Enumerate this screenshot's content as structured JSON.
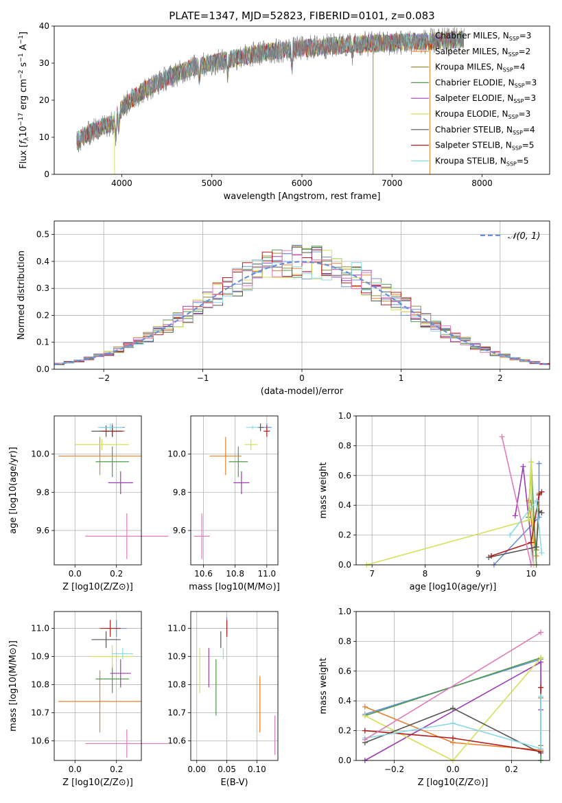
{
  "figure": {
    "title": "PLATE=1347, MJD=52823, FIBERID=0101, z=0.083"
  },
  "model_colors": {
    "Chabrier MILES": "#6a8fd8",
    "Salpeter MILES": "#e6802e",
    "Kroupa MILES": "#9c8a3a",
    "Chabrier ELODIE": "#4e9a4e",
    "Salpeter ELODIE": "#9c3cb4",
    "Kroupa ELODIE": "#d4e05a",
    "Chabrier STELIB": "#555555",
    "Salpeter STELIB": "#b01c1c",
    "Kroupa STELIB": "#8ad9e6"
  },
  "chart_data": [
    {
      "id": "spectrum",
      "type": "line",
      "title": "PLATE=1347, MJD=52823, FIBERID=0101, z=0.083",
      "xlabel": "wavelength [Angstrom, rest frame]",
      "ylabel": "Flux [f_λ 10^-17 erg cm^-2 s^-1 A^-1]",
      "xlim": [
        3250,
        8750
      ],
      "ylim": [
        0,
        40
      ],
      "xticks": [
        4000,
        5000,
        6000,
        7000,
        8000
      ],
      "yticks": [
        0,
        10,
        20,
        30,
        40
      ],
      "grid": false,
      "legend_position": "right",
      "series": [
        {
          "name": "Chabrier MILES, N_SSP=3"
        },
        {
          "name": "Salpeter MILES, N_SSP=2"
        },
        {
          "name": "Kroupa MILES, N_SSP=4"
        },
        {
          "name": "Chabrier ELODIE, N_SSP=3"
        },
        {
          "name": "Salpeter ELODIE, N_SSP=3"
        },
        {
          "name": "Kroupa ELODIE, N_SSP=3"
        },
        {
          "name": "Chabrier STELIB, N_SSP=4"
        },
        {
          "name": "Salpeter STELIB, N_SSP=5"
        },
        {
          "name": "Kroupa STELIB, N_SSP=5"
        }
      ],
      "continuum": [
        [
          3500,
          9
        ],
        [
          3700,
          12
        ],
        [
          3900,
          14
        ],
        [
          4000,
          18
        ],
        [
          4200,
          22
        ],
        [
          4500,
          26
        ],
        [
          4800,
          29
        ],
        [
          5200,
          31
        ],
        [
          5600,
          33
        ],
        [
          6000,
          34
        ],
        [
          6500,
          35
        ],
        [
          7000,
          35.5
        ],
        [
          7500,
          36
        ],
        [
          7800,
          36.5
        ]
      ]
    },
    {
      "id": "residuals",
      "type": "histogram",
      "xlabel": "(data-model)/error",
      "ylabel": "Normed distribution",
      "xlim": [
        -2.5,
        2.5
      ],
      "ylim": [
        0,
        0.55
      ],
      "xticks": [
        -2,
        -1,
        0,
        1,
        2
      ],
      "yticks": [
        0.0,
        0.1,
        0.2,
        0.3,
        0.4,
        0.5
      ],
      "grid": true,
      "legend": "N(0,1)",
      "legend_position": "top-right",
      "bin_width": 0.1,
      "reference_curve": "normal(0,1)"
    },
    {
      "id": "age_vs_Z",
      "type": "scatter",
      "xlabel": "Z [log10(Z/Z⊙)]",
      "ylabel": "age  [log10(age/yr)]",
      "xlim": [
        -0.1,
        0.32
      ],
      "ylim": [
        9.42,
        10.2
      ],
      "xticks": [
        0.0,
        0.2
      ],
      "yticks": [
        9.6,
        9.8,
        10.0
      ],
      "grid": true,
      "points": [
        {
          "model": "Chabrier MILES",
          "x": 0.18,
          "xerr": 0.06,
          "y": 10.14,
          "yerr": 0.02
        },
        {
          "model": "Salpeter MILES",
          "x": 0.12,
          "xerr": 0.2,
          "y": 9.99,
          "yerr": 0.1
        },
        {
          "model": "Kroupa MILES",
          "x": 0.18,
          "xerr": 0.06,
          "y": 10.12,
          "yerr": 0.03
        },
        {
          "model": "Chabrier ELODIE",
          "x": 0.18,
          "xerr": 0.08,
          "y": 9.96,
          "yerr": 0.08
        },
        {
          "model": "Salpeter ELODIE",
          "x": 0.22,
          "xerr": 0.06,
          "y": 9.85,
          "yerr": 0.06
        },
        {
          "model": "Kroupa ELODIE",
          "x": 0.13,
          "xerr": 0.13,
          "y": 10.05,
          "yerr": 0.03
        },
        {
          "model": "Chabrier STELIB",
          "x": 0.15,
          "xerr": 0.07,
          "y": 10.12,
          "yerr": 0.03
        },
        {
          "model": "Salpeter STELIB",
          "x": 0.18,
          "xerr": 0.05,
          "y": 10.12,
          "yerr": 0.03
        },
        {
          "model": "Kroupa STELIB",
          "x": 0.17,
          "xerr": 0.06,
          "y": 10.14,
          "yerr": 0.02
        },
        {
          "model": "Kroupa pink",
          "x": 0.25,
          "xerr": 0.2,
          "y": 9.57,
          "yerr": 0.12
        }
      ]
    },
    {
      "id": "age_vs_mass",
      "type": "scatter",
      "xlabel": "mass [log10(M/M⊙)]",
      "ylabel": "",
      "xlim": [
        10.52,
        11.07
      ],
      "ylim": [
        9.42,
        10.2
      ],
      "xticks": [
        10.6,
        10.8,
        11.0
      ],
      "yticks": [
        9.6,
        9.8,
        10.0
      ],
      "grid": true,
      "points": [
        {
          "model": "Chabrier MILES",
          "x": 11.0,
          "xerr": 0.03,
          "y": 10.14,
          "yerr": 0.02
        },
        {
          "model": "Salpeter MILES",
          "x": 10.74,
          "xerr": 0.1,
          "y": 9.99,
          "yerr": 0.1
        },
        {
          "model": "Chabrier ELODIE",
          "x": 10.82,
          "xerr": 0.06,
          "y": 9.96,
          "yerr": 0.08
        },
        {
          "model": "Salpeter ELODIE",
          "x": 10.84,
          "xerr": 0.05,
          "y": 9.85,
          "yerr": 0.06
        },
        {
          "model": "Kroupa ELODIE",
          "x": 10.9,
          "xerr": 0.04,
          "y": 10.05,
          "yerr": 0.03
        },
        {
          "model": "Chabrier STELIB",
          "x": 10.96,
          "xerr": 0.02,
          "y": 10.14,
          "yerr": 0.02
        },
        {
          "model": "Salpeter STELIB",
          "x": 11.0,
          "xerr": 0.02,
          "y": 10.12,
          "yerr": 0.03
        },
        {
          "model": "Kroupa STELIB",
          "x": 10.91,
          "xerr": 0.04,
          "y": 10.14,
          "yerr": 0.01
        },
        {
          "model": "Kroupa pink",
          "x": 10.59,
          "xerr": 0.05,
          "y": 9.57,
          "yerr": 0.12
        }
      ]
    },
    {
      "id": "weight_vs_age",
      "type": "line",
      "xlabel": "age  [log10(age/yr)]",
      "ylabel": "mass weight",
      "xlim": [
        6.7,
        10.35
      ],
      "ylim": [
        0,
        1
      ],
      "xticks": [
        7,
        8,
        9,
        10
      ],
      "yticks": [
        0.0,
        0.2,
        0.4,
        0.6,
        0.8,
        1.0
      ],
      "grid": true,
      "series": [
        {
          "model": "Chabrier MILES",
          "x": [
            9.3,
            10.15,
            10.15
          ],
          "y": [
            0.0,
            0.32,
            0.68
          ]
        },
        {
          "model": "Salpeter MILES",
          "x": [
            9.95,
            10.1
          ],
          "y": [
            0.43,
            0.06
          ]
        },
        {
          "model": "Kroupa MILES",
          "x": [
            10.0,
            10.1,
            10.15
          ],
          "y": [
            0.42,
            0.1,
            0.48
          ]
        },
        {
          "model": "Chabrier ELODIE",
          "x": [
            9.95,
            10.0,
            10.1
          ],
          "y": [
            0.32,
            0.69,
            0.0
          ]
        },
        {
          "model": "Salpeter ELODIE",
          "x": [
            9.7,
            9.85,
            10.05
          ],
          "y": [
            0.33,
            0.66,
            0.0
          ]
        },
        {
          "model": "Kroupa ELODIE",
          "x": [
            6.9,
            9.95,
            10.0,
            10.05
          ],
          "y": [
            0.0,
            0.3,
            0.69,
            0.0
          ]
        },
        {
          "model": "Chabrier STELIB",
          "x": [
            9.2,
            10.1,
            10.15,
            10.2
          ],
          "y": [
            0.05,
            0.12,
            0.36,
            0.35
          ]
        },
        {
          "model": "Salpeter STELIB",
          "x": [
            9.25,
            10.0,
            10.15,
            10.2
          ],
          "y": [
            0.06,
            0.15,
            0.47,
            0.49
          ]
        },
        {
          "model": "Kroupa STELIB",
          "x": [
            9.6,
            10.1,
            10.2
          ],
          "y": [
            0.2,
            0.43,
            0.08
          ]
        },
        {
          "model": "Kroupa pink",
          "x": [
            9.45,
            10.0
          ],
          "y": [
            0.86,
            0.0
          ]
        }
      ]
    },
    {
      "id": "mass_vs_Z",
      "type": "scatter",
      "xlabel": "Z [log10(Z/Z⊙)]",
      "ylabel": "mass [log10(M/M⊙)]",
      "xlim": [
        -0.1,
        0.32
      ],
      "ylim": [
        10.53,
        11.06
      ],
      "xticks": [
        0.0,
        0.2
      ],
      "yticks": [
        10.6,
        10.7,
        10.8,
        10.9,
        11.0
      ],
      "grid": true,
      "points": [
        {
          "model": "Chabrier MILES",
          "x": 0.2,
          "xerr": 0.05,
          "y": 11.0,
          "yerr": 0.03
        },
        {
          "model": "Salpeter MILES",
          "x": 0.12,
          "xerr": 0.2,
          "y": 10.74,
          "yerr": 0.11
        },
        {
          "model": "Chabrier ELODIE",
          "x": 0.18,
          "xerr": 0.08,
          "y": 10.82,
          "yerr": 0.05
        },
        {
          "model": "Salpeter ELODIE",
          "x": 0.22,
          "xerr": 0.05,
          "y": 10.84,
          "yerr": 0.05
        },
        {
          "model": "Kroupa ELODIE",
          "x": 0.18,
          "xerr": 0.1,
          "y": 10.9,
          "yerr": 0.04
        },
        {
          "model": "Chabrier STELIB",
          "x": 0.15,
          "xerr": 0.07,
          "y": 10.96,
          "yerr": 0.03
        },
        {
          "model": "Salpeter STELIB",
          "x": 0.17,
          "xerr": 0.05,
          "y": 11.0,
          "yerr": 0.03
        },
        {
          "model": "Kroupa STELIB",
          "x": 0.23,
          "xerr": 0.05,
          "y": 10.91,
          "yerr": 0.02
        },
        {
          "model": "Kroupa pink",
          "x": 0.25,
          "xerr": 0.2,
          "y": 10.59,
          "yerr": 0.05
        }
      ]
    },
    {
      "id": "mass_vs_EBV",
      "type": "scatter",
      "xlabel": "E(B-V)",
      "ylabel": "",
      "xlim": [
        -0.01,
        0.135
      ],
      "ylim": [
        10.53,
        11.06
      ],
      "xticks": [
        0.0,
        0.05,
        0.1
      ],
      "yticks": [
        10.6,
        10.7,
        10.8,
        10.9,
        11.0
      ],
      "grid": true,
      "points": [
        {
          "model": "Chabrier MILES",
          "x": 0.05,
          "xerr": 0,
          "y": 11.01,
          "yerr": 0.03
        },
        {
          "model": "Salpeter MILES",
          "x": 0.105,
          "xerr": 0,
          "y": 10.73,
          "yerr": 0.1
        },
        {
          "model": "Chabrier ELODIE",
          "x": 0.032,
          "xerr": 0,
          "y": 10.79,
          "yerr": 0.1
        },
        {
          "model": "Salpeter ELODIE",
          "x": 0.02,
          "xerr": 0,
          "y": 10.86,
          "yerr": 0.07
        },
        {
          "model": "Kroupa ELODIE",
          "x": 0.005,
          "xerr": 0,
          "y": 10.85,
          "yerr": 0.08
        },
        {
          "model": "Chabrier STELIB",
          "x": 0.04,
          "xerr": 0,
          "y": 10.96,
          "yerr": 0.03
        },
        {
          "model": "Salpeter STELIB",
          "x": 0.05,
          "xerr": 0,
          "y": 11.0,
          "yerr": 0.03
        },
        {
          "model": "Kroupa STELIB",
          "x": 0.044,
          "xerr": 0,
          "y": 10.91,
          "yerr": 0.02
        },
        {
          "model": "Kroupa pink",
          "x": 0.13,
          "xerr": 0,
          "y": 10.62,
          "yerr": 0.07
        }
      ]
    },
    {
      "id": "weight_vs_Z",
      "type": "line",
      "xlabel": "Z [log10(Z/Z⊙)]",
      "ylabel": "mass weight",
      "xlim": [
        -0.33,
        0.33
      ],
      "ylim": [
        0,
        1
      ],
      "xticks": [
        -0.2,
        0.0,
        0.2
      ],
      "yticks": [
        0.0,
        0.2,
        0.4,
        0.6,
        0.8,
        1.0
      ],
      "grid": true,
      "series": [
        {
          "model": "Chabrier MILES",
          "x": [
            -0.3,
            0.3,
            0.3
          ],
          "y": [
            0.31,
            0.68,
            0.0
          ]
        },
        {
          "model": "Salpeter MILES",
          "x": [
            -0.3,
            0.0,
            0.3
          ],
          "y": [
            0.36,
            0.12,
            0.07
          ]
        },
        {
          "model": "Kroupa MILES",
          "x": [
            0.3,
            0.3
          ],
          "y": [
            0.42,
            0.1
          ]
        },
        {
          "model": "Chabrier ELODIE",
          "x": [
            -0.3,
            0.3,
            0.3
          ],
          "y": [
            0.3,
            0.69,
            0.0
          ]
        },
        {
          "model": "Salpeter ELODIE",
          "x": [
            -0.3,
            0.3,
            0.3
          ],
          "y": [
            0.0,
            0.66,
            0.34
          ]
        },
        {
          "model": "Kroupa ELODIE",
          "x": [
            -0.3,
            0.0,
            0.3
          ],
          "y": [
            0.3,
            0.0,
            0.69
          ]
        },
        {
          "model": "Chabrier STELIB",
          "x": [
            -0.3,
            0.0,
            0.3
          ],
          "y": [
            0.12,
            0.35,
            0.05
          ]
        },
        {
          "model": "Salpeter STELIB",
          "x": [
            -0.3,
            0.0,
            0.3,
            0.3
          ],
          "y": [
            0.2,
            0.15,
            0.06,
            0.49
          ]
        },
        {
          "model": "Kroupa STELIB",
          "x": [
            -0.3,
            0.0,
            0.3,
            0.3
          ],
          "y": [
            0.15,
            0.25,
            0.08,
            0.43
          ]
        },
        {
          "model": "Kroupa pink",
          "x": [
            -0.3,
            0.3
          ],
          "y": [
            0.14,
            0.86
          ]
        }
      ]
    }
  ]
}
